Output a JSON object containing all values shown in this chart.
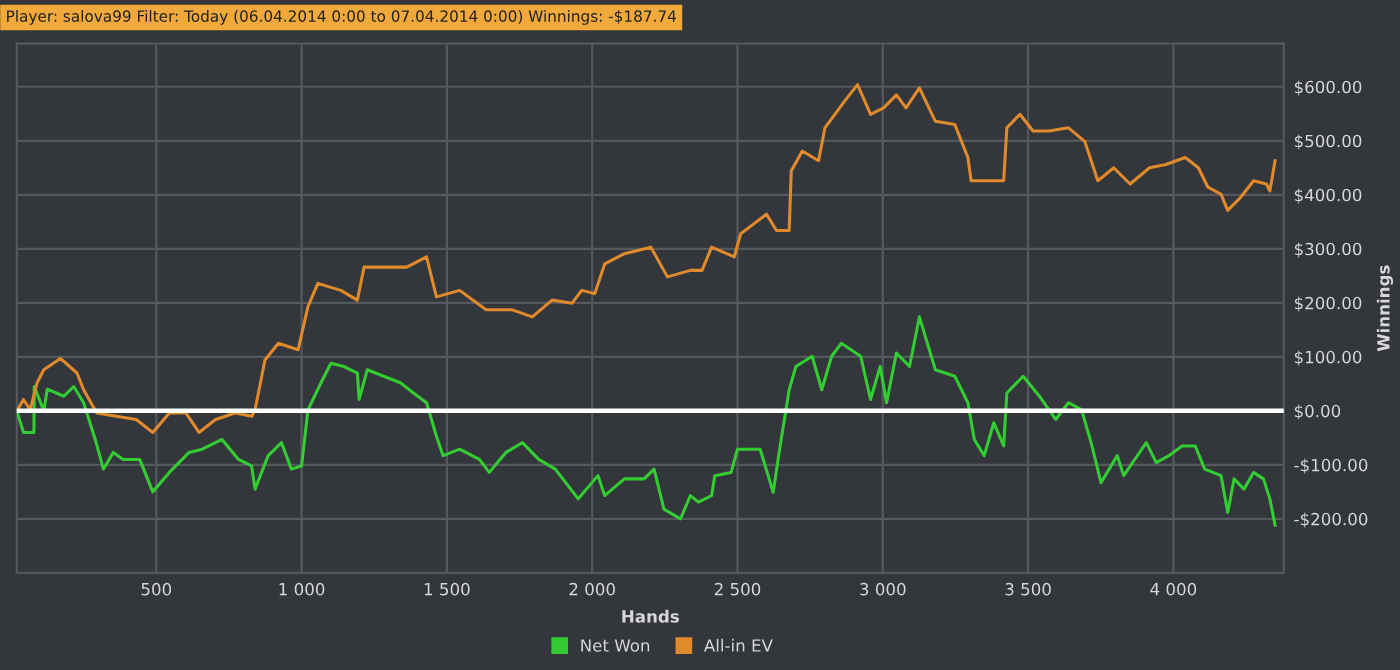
{
  "chart_data": {
    "type": "line",
    "title": "Player: salova99 Filter: Today (06.04.2014 0:00 to 07.04.2014 0:00) Winnings: -$187.74",
    "xlabel": "Hands",
    "ylabel": "Winnings",
    "xlim": [
      20,
      4380
    ],
    "ylim": [
      -300,
      680
    ],
    "xticks": [
      {
        "value": 500,
        "label": "500"
      },
      {
        "value": 1000,
        "label": "1 000"
      },
      {
        "value": 1500,
        "label": "1 500"
      },
      {
        "value": 2000,
        "label": "2 000"
      },
      {
        "value": 2500,
        "label": "2 500"
      },
      {
        "value": 3000,
        "label": "3 000"
      },
      {
        "value": 3500,
        "label": "3 500"
      },
      {
        "value": 4000,
        "label": "4 000"
      }
    ],
    "yticks": [
      {
        "value": -200,
        "label": "-$200.00"
      },
      {
        "value": -100,
        "label": "-$100.00"
      },
      {
        "value": 0,
        "label": "$0.00"
      },
      {
        "value": 100,
        "label": "$100.00"
      },
      {
        "value": 200,
        "label": "$200.00"
      },
      {
        "value": 300,
        "label": "$300.00"
      },
      {
        "value": 400,
        "label": "$400.00"
      },
      {
        "value": 500,
        "label": "$500.00"
      },
      {
        "value": 600,
        "label": "$600.00"
      }
    ],
    "grid": true,
    "legend": "bottom",
    "ref_lines": [
      {
        "axis": "y",
        "value": 0,
        "color": "#ffffff"
      }
    ],
    "series": [
      {
        "name": "Net Won",
        "color": "#33cc33",
        "x": [
          20,
          43,
          79,
          80,
          113,
          125,
          182,
          216,
          250,
          290,
          318,
          352,
          386,
          443,
          488,
          545,
          613,
          658,
          726,
          783,
          828,
          840,
          885,
          931,
          965,
          1000,
          1022,
          1067,
          1101,
          1146,
          1192,
          1198,
          1226,
          1283,
          1340,
          1385,
          1430,
          1464,
          1487,
          1544,
          1612,
          1646,
          1703,
          1760,
          1816,
          1873,
          1952,
          2020,
          2043,
          2111,
          2179,
          2213,
          2247,
          2304,
          2338,
          2366,
          2411,
          2422,
          2478,
          2500,
          2578,
          2623,
          2645,
          2678,
          2701,
          2757,
          2790,
          2824,
          2857,
          2924,
          2958,
          2991,
          3013,
          3047,
          3092,
          3126,
          3181,
          3248,
          3293,
          3315,
          3349,
          3382,
          3416,
          3427,
          3483,
          3539,
          3595,
          3639,
          3684,
          3717,
          3751,
          3807,
          3829,
          3907,
          3941,
          3985,
          4030,
          4075,
          4108,
          4164,
          4187,
          4209,
          4243,
          4276,
          4310,
          4332,
          4350
        ],
        "values": [
          0,
          -40,
          -40,
          45,
          0,
          40,
          27,
          45,
          15,
          -53,
          -108,
          -77,
          -90,
          -90,
          -150,
          -114,
          -77,
          -71,
          -53,
          -90,
          -102,
          -145,
          -83,
          -59,
          -108,
          -102,
          2,
          52,
          88,
          82,
          70,
          21,
          76,
          64,
          52,
          33,
          15,
          -47,
          -83,
          -71,
          -90,
          -114,
          -77,
          -59,
          -90,
          -108,
          -163,
          -120,
          -157,
          -126,
          -126,
          -108,
          -182,
          -200,
          -157,
          -169,
          -157,
          -120,
          -114,
          -71,
          -71,
          -151,
          -71,
          39,
          82,
          101,
          39,
          101,
          125,
          101,
          21,
          82,
          15,
          107,
          82,
          174,
          76,
          64,
          15,
          -53,
          -83,
          -22,
          -65,
          33,
          64,
          27,
          -16,
          15,
          2,
          -59,
          -133,
          -83,
          -120,
          -59,
          -96,
          -83,
          -65,
          -65,
          -108,
          -120,
          -188,
          -126,
          -145,
          -114,
          -126,
          -163,
          -212
        ]
      },
      {
        "name": "All-in EV",
        "color": "#e08a2c",
        "x": [
          20,
          43,
          66,
          90,
          113,
          170,
          227,
          250,
          295,
          363,
          431,
          488,
          545,
          602,
          647,
          704,
          772,
          829,
          840,
          874,
          920,
          988,
          1022,
          1056,
          1135,
          1192,
          1215,
          1294,
          1362,
          1430,
          1464,
          1544,
          1635,
          1725,
          1794,
          1862,
          1930,
          1964,
          2009,
          2043,
          2111,
          2202,
          2259,
          2338,
          2378,
          2411,
          2489,
          2511,
          2600,
          2634,
          2678,
          2685,
          2723,
          2779,
          2801,
          2868,
          2913,
          2958,
          3003,
          3047,
          3080,
          3126,
          3181,
          3248,
          3293,
          3304,
          3349,
          3416,
          3427,
          3472,
          3517,
          3572,
          3639,
          3695,
          3740,
          3795,
          3851,
          3918,
          3974,
          4041,
          4086,
          4119,
          4164,
          4187,
          4231,
          4276,
          4320,
          4332,
          4350
        ],
        "values": [
          0,
          21,
          2,
          52,
          76,
          97,
          70,
          39,
          -4,
          -10,
          -16,
          -40,
          -4,
          -4,
          -40,
          -16,
          -4,
          -10,
          2,
          94,
          125,
          113,
          193,
          236,
          223,
          205,
          266,
          266,
          266,
          285,
          211,
          223,
          187,
          187,
          174,
          205,
          199,
          223,
          217,
          272,
          291,
          303,
          248,
          260,
          260,
          303,
          285,
          328,
          364,
          334,
          334,
          444,
          481,
          463,
          524,
          573,
          604,
          549,
          561,
          585,
          561,
          598,
          536,
          530,
          469,
          426,
          426,
          426,
          524,
          549,
          518,
          518,
          524,
          499,
          426,
          450,
          420,
          450,
          456,
          469,
          450,
          414,
          401,
          371,
          395,
          426,
          420,
          407,
          463
        ]
      }
    ]
  }
}
